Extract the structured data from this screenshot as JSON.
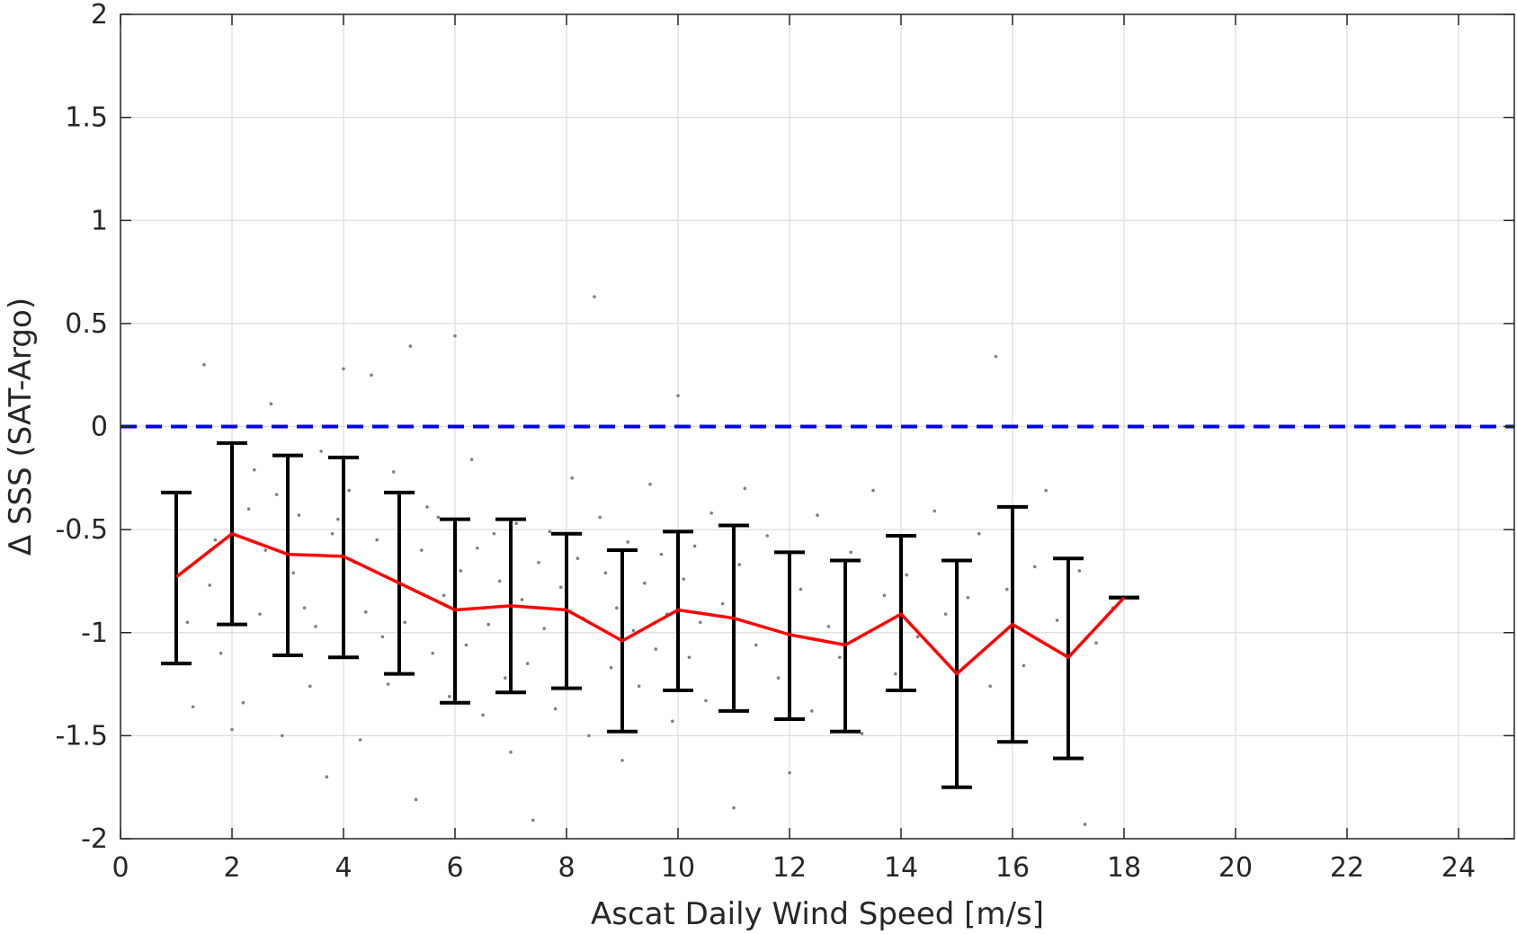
{
  "chart_data": {
    "type": "scatter",
    "xlabel": "Ascat Daily Wind Speed [m/s]",
    "ylabel": "Δ SSS (SAT-Argo)",
    "xlim": [
      0,
      25
    ],
    "ylim": [
      -2,
      2
    ],
    "xticks": [
      0,
      2,
      4,
      6,
      8,
      10,
      12,
      14,
      16,
      18,
      20,
      22,
      24
    ],
    "yticks": [
      -2,
      -1.5,
      -1,
      -0.5,
      0,
      0.5,
      1,
      1.5,
      2
    ],
    "xtick_labels": [
      "0",
      "2",
      "4",
      "6",
      "8",
      "10",
      "12",
      "14",
      "16",
      "18",
      "20",
      "22",
      "24"
    ],
    "ytick_labels": [
      "-2",
      "-1.5",
      "-1",
      "-0.5",
      "0",
      "0.5",
      "1",
      "1.5",
      "2"
    ],
    "grid": true,
    "reference_line": {
      "y": 0,
      "style": "dashed",
      "color": "#0000ee"
    },
    "colors": {
      "mean_line": "#ff0000",
      "error_bars": "#000000",
      "scatter": "#7f7f7f",
      "grid": "#dcdcdc",
      "axes": "#262626"
    },
    "binned_stats": {
      "x": [
        1,
        2,
        3,
        4,
        5,
        6,
        7,
        8,
        9,
        10,
        11,
        12,
        13,
        14,
        15,
        16,
        17,
        18
      ],
      "mean": [
        -0.73,
        -0.52,
        -0.62,
        -0.63,
        -0.76,
        -0.89,
        -0.87,
        -0.89,
        -1.04,
        -0.89,
        -0.93,
        -1.01,
        -1.06,
        -0.91,
        -1.2,
        -0.96,
        -1.12,
        -0.83
      ],
      "lower": [
        -1.15,
        -0.96,
        -1.11,
        -1.12,
        -1.2,
        -1.34,
        -1.29,
        -1.27,
        -1.48,
        -1.28,
        -1.38,
        -1.42,
        -1.48,
        -1.28,
        -1.75,
        -1.53,
        -1.61,
        -0.83
      ],
      "upper": [
        -0.32,
        -0.08,
        -0.14,
        -0.15,
        -0.32,
        -0.45,
        -0.45,
        -0.52,
        -0.6,
        -0.51,
        -0.48,
        -0.61,
        -0.65,
        -0.53,
        -0.65,
        -0.39,
        -0.64,
        -0.83
      ]
    },
    "scatter_points": [
      [
        1.0,
        -0.62
      ],
      [
        1.2,
        -0.95
      ],
      [
        1.3,
        -1.36
      ],
      [
        1.5,
        0.3
      ],
      [
        1.6,
        -0.77
      ],
      [
        1.7,
        -0.55
      ],
      [
        1.8,
        -1.1
      ],
      [
        2.0,
        -1.47
      ],
      [
        2.2,
        -1.34
      ],
      [
        2.3,
        -0.4
      ],
      [
        2.4,
        -0.21
      ],
      [
        2.5,
        -0.91
      ],
      [
        2.6,
        -0.6
      ],
      [
        2.7,
        0.11
      ],
      [
        2.8,
        -0.33
      ],
      [
        2.9,
        -1.5
      ],
      [
        3.0,
        -0.28
      ],
      [
        3.1,
        -0.71
      ],
      [
        3.2,
        -0.43
      ],
      [
        3.3,
        -0.88
      ],
      [
        3.4,
        -1.26
      ],
      [
        3.5,
        -0.97
      ],
      [
        3.6,
        -0.12
      ],
      [
        3.7,
        -1.7
      ],
      [
        3.8,
        -0.52
      ],
      [
        3.9,
        -0.45
      ],
      [
        4.0,
        0.28
      ],
      [
        4.1,
        -0.31
      ],
      [
        4.2,
        -0.66
      ],
      [
        4.3,
        -1.52
      ],
      [
        4.4,
        -0.9
      ],
      [
        4.5,
        0.25
      ],
      [
        4.6,
        -0.55
      ],
      [
        4.7,
        -1.02
      ],
      [
        4.8,
        -1.25
      ],
      [
        4.9,
        -0.22
      ],
      [
        5.0,
        -0.73
      ],
      [
        5.1,
        -0.95
      ],
      [
        5.2,
        0.39
      ],
      [
        5.3,
        -1.81
      ],
      [
        5.4,
        -0.6
      ],
      [
        5.5,
        -0.39
      ],
      [
        5.6,
        -1.1
      ],
      [
        5.7,
        -0.44
      ],
      [
        5.8,
        -0.82
      ],
      [
        5.9,
        -1.31
      ],
      [
        6.0,
        0.44
      ],
      [
        6.1,
        -0.7
      ],
      [
        6.2,
        -1.06
      ],
      [
        6.3,
        -0.16
      ],
      [
        6.4,
        -0.59
      ],
      [
        6.5,
        -1.4
      ],
      [
        6.6,
        -0.96
      ],
      [
        6.7,
        -0.52
      ],
      [
        6.8,
        -0.75
      ],
      [
        6.9,
        -1.22
      ],
      [
        7.0,
        -1.58
      ],
      [
        7.1,
        -0.47
      ],
      [
        7.2,
        -0.84
      ],
      [
        7.3,
        -1.15
      ],
      [
        7.4,
        -1.91
      ],
      [
        7.5,
        -0.66
      ],
      [
        7.6,
        -0.98
      ],
      [
        7.7,
        -0.51
      ],
      [
        7.8,
        -1.37
      ],
      [
        7.9,
        -0.78
      ],
      [
        8.0,
        -1.03
      ],
      [
        8.1,
        -0.25
      ],
      [
        8.2,
        -0.64
      ],
      [
        8.3,
        -0.93
      ],
      [
        8.4,
        -1.5
      ],
      [
        8.5,
        0.63
      ],
      [
        8.6,
        -0.44
      ],
      [
        8.7,
        -0.71
      ],
      [
        8.8,
        -1.17
      ],
      [
        8.9,
        -0.88
      ],
      [
        9.0,
        -1.62
      ],
      [
        9.1,
        -0.56
      ],
      [
        9.2,
        -0.99
      ],
      [
        9.3,
        -1.26
      ],
      [
        9.4,
        -0.76
      ],
      [
        9.5,
        -0.28
      ],
      [
        9.6,
        -1.08
      ],
      [
        9.7,
        -0.62
      ],
      [
        9.8,
        -0.91
      ],
      [
        9.9,
        -1.43
      ],
      [
        10.0,
        0.15
      ],
      [
        10.1,
        -0.74
      ],
      [
        10.2,
        -1.12
      ],
      [
        10.3,
        -0.58
      ],
      [
        10.4,
        -0.95
      ],
      [
        10.5,
        -1.33
      ],
      [
        10.6,
        -0.42
      ],
      [
        10.8,
        -0.86
      ],
      [
        11.0,
        -1.85
      ],
      [
        11.1,
        -0.67
      ],
      [
        11.2,
        -0.3
      ],
      [
        11.4,
        -1.06
      ],
      [
        11.6,
        -0.53
      ],
      [
        11.8,
        -1.22
      ],
      [
        12.0,
        -1.68
      ],
      [
        12.2,
        -0.79
      ],
      [
        12.4,
        -1.38
      ],
      [
        12.5,
        -0.43
      ],
      [
        12.7,
        -0.97
      ],
      [
        12.9,
        -1.12
      ],
      [
        13.1,
        -0.61
      ],
      [
        13.3,
        -1.49
      ],
      [
        13.5,
        -0.31
      ],
      [
        13.7,
        -0.82
      ],
      [
        13.9,
        -1.2
      ],
      [
        14.1,
        -0.72
      ],
      [
        14.3,
        -1.02
      ],
      [
        14.6,
        -0.41
      ],
      [
        14.8,
        -0.91
      ],
      [
        15.0,
        -1.57
      ],
      [
        15.2,
        -0.83
      ],
      [
        15.4,
        -0.52
      ],
      [
        15.6,
        -1.26
      ],
      [
        15.7,
        0.34
      ],
      [
        15.9,
        -0.79
      ],
      [
        16.2,
        -1.16
      ],
      [
        16.4,
        -0.68
      ],
      [
        16.6,
        -0.31
      ],
      [
        16.8,
        -0.94
      ],
      [
        17.0,
        -1.27
      ],
      [
        17.2,
        -0.7
      ],
      [
        17.3,
        -1.93
      ],
      [
        17.5,
        -1.05
      ],
      [
        17.8,
        -0.88
      ]
    ]
  }
}
